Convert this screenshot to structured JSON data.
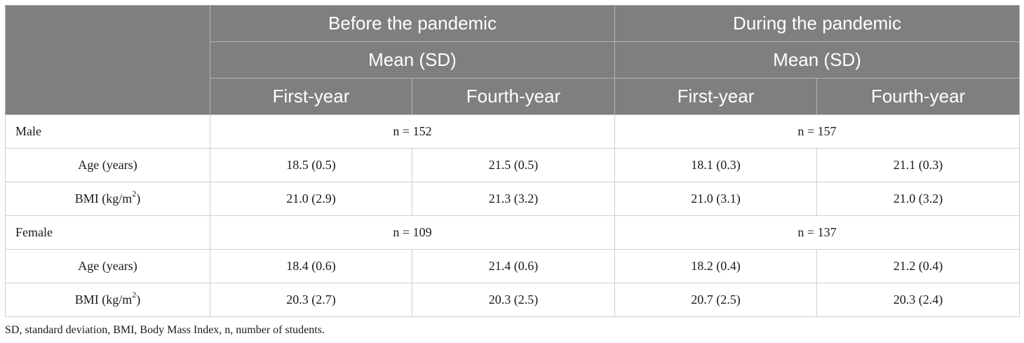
{
  "header": {
    "period_before": "Before the pandemic",
    "period_during": "During the pandemic",
    "stat_before": "Mean (SD)",
    "stat_during": "Mean (SD)",
    "cols": [
      "First-year",
      "Fourth-year",
      "First-year",
      "Fourth-year"
    ]
  },
  "groups": [
    {
      "label": "Male",
      "n_before": "n = 152",
      "n_during": "n = 157",
      "rows": [
        {
          "label": "Age (years)",
          "values": [
            "18.5 (0.5)",
            "21.5 (0.5)",
            "18.1 (0.3)",
            "21.1 (0.3)"
          ]
        },
        {
          "label": "BMI (kg/m",
          "label_sup": "2",
          "label_end": ")",
          "values": [
            "21.0 (2.9)",
            "21.3 (3.2)",
            "21.0 (3.1)",
            "21.0 (3.2)"
          ]
        }
      ]
    },
    {
      "label": "Female",
      "n_before": "n = 109",
      "n_during": "n = 137",
      "rows": [
        {
          "label": "Age (years)",
          "values": [
            "18.4 (0.6)",
            "21.4 (0.6)",
            "18.2 (0.4)",
            "21.2 (0.4)"
          ]
        },
        {
          "label": "BMI (kg/m",
          "label_sup": "2",
          "label_end": ")",
          "values": [
            "20.3 (2.7)",
            "20.3 (2.5)",
            "20.7 (2.5)",
            "20.3 (2.4)"
          ]
        }
      ]
    }
  ],
  "footnote": "SD, standard deviation, BMI, Body Mass Index, n, number of students."
}
